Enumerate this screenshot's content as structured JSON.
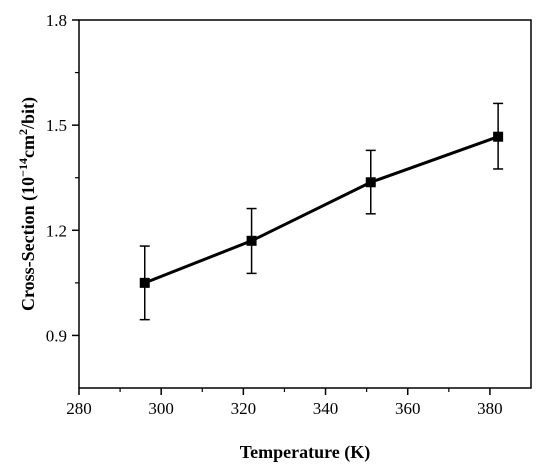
{
  "chart_data": {
    "type": "line",
    "xlabel": "Temperature (K)",
    "ylabel": {
      "prefix": "Cross-Section (10",
      "exp1": "−14",
      "mid": "cm",
      "exp2": "2",
      "suffix": "/bit)"
    },
    "xlim": [
      280,
      390
    ],
    "ylim": [
      0.75,
      1.8
    ],
    "x_ticks": [
      280,
      300,
      320,
      340,
      360,
      380
    ],
    "y_ticks": [
      0.9,
      1.2,
      1.5,
      1.8
    ],
    "x_tick_labels": [
      "280",
      "300",
      "320",
      "340",
      "360",
      "380"
    ],
    "y_tick_labels": [
      "0.9",
      "1.2",
      "1.5",
      "1.8"
    ],
    "grid": false,
    "marker": "square",
    "color": "#000000",
    "points": [
      {
        "x": 296,
        "y": 1.05,
        "err_low": 0.945,
        "err_high": 1.155
      },
      {
        "x": 322,
        "y": 1.17,
        "err_low": 1.077,
        "err_high": 1.262
      },
      {
        "x": 351,
        "y": 1.337,
        "err_low": 1.247,
        "err_high": 1.428
      },
      {
        "x": 382,
        "y": 1.467,
        "err_low": 1.375,
        "err_high": 1.562
      }
    ]
  }
}
